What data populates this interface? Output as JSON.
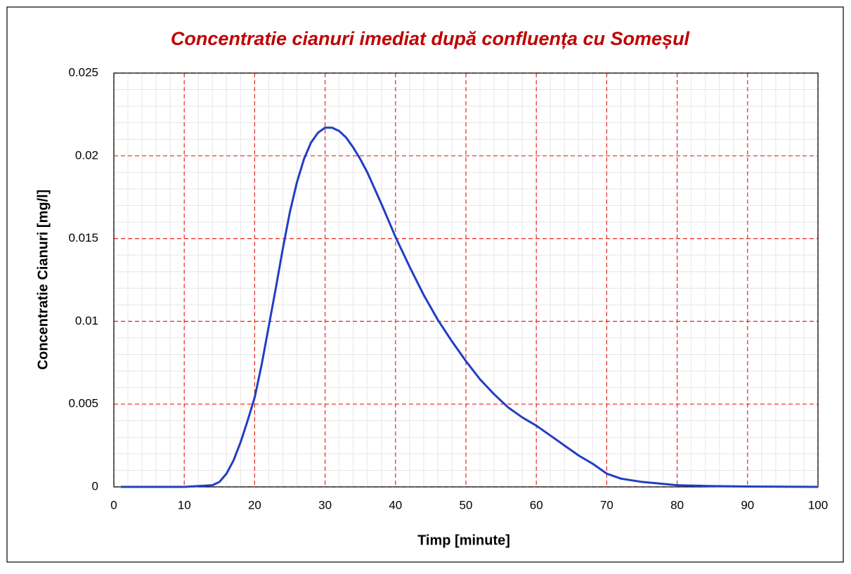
{
  "chart_data": {
    "type": "line",
    "title": "Concentratie cianuri imediat după confluența cu Someșul",
    "x_label": "Timp [minute]",
    "y_label": "Concentratie Cianuri [mg/l]",
    "x": [
      1,
      10,
      14,
      15,
      16,
      17,
      18,
      19,
      20,
      21,
      22,
      23,
      24,
      25,
      26,
      27,
      28,
      29,
      30,
      31,
      32,
      33,
      34,
      35,
      36,
      38,
      40,
      42,
      44,
      46,
      48,
      50,
      52,
      54,
      56,
      58,
      60,
      62,
      64,
      66,
      68,
      70,
      72,
      75,
      80,
      85,
      90,
      100
    ],
    "series": [
      {
        "name": "Concentratie cianuri",
        "color": "#1f3fc4",
        "values": [
          0,
          0,
          0.0001,
          0.0003,
          0.0008,
          0.0016,
          0.0027,
          0.004,
          0.0054,
          0.0074,
          0.0097,
          0.012,
          0.0144,
          0.0166,
          0.0184,
          0.0198,
          0.0208,
          0.0214,
          0.0217,
          0.0217,
          0.0215,
          0.0211,
          0.0205,
          0.0198,
          0.019,
          0.0171,
          0.0151,
          0.0133,
          0.0116,
          0.0101,
          0.0088,
          0.0076,
          0.0065,
          0.0056,
          0.0048,
          0.0042,
          0.0037,
          0.0031,
          0.0025,
          0.0019,
          0.0014,
          0.0008,
          0.0005,
          0.0003,
          0.0001,
          5e-05,
          2e-05,
          0
        ]
      }
    ],
    "xlim": [
      0,
      100
    ],
    "xticks": [
      0,
      10,
      20,
      30,
      40,
      50,
      60,
      70,
      80,
      90,
      100
    ],
    "ylim": [
      0,
      0.025
    ],
    "yticks": [
      0,
      0.005,
      0.01,
      0.015,
      0.02,
      0.025
    ],
    "grid": true,
    "grid_color": "#e8261f",
    "minor_grid": true,
    "title_color": "#c00000"
  }
}
